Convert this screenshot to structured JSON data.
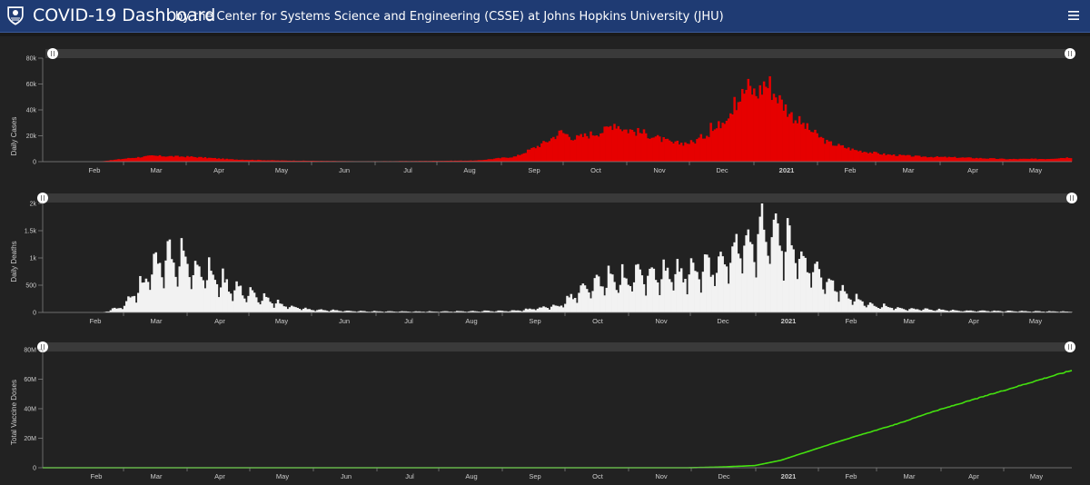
{
  "header": {
    "title": "COVID-19 Dashboard",
    "subtitle": "by the Center for Systems Science and Engineering (CSSE) at Johns Hopkins University (JHU)",
    "menu_icon": "hamburger-menu-icon",
    "background": "#1f3b73"
  },
  "x_axis_months": [
    "Feb",
    "Mar",
    "Apr",
    "May",
    "Jun",
    "Jul",
    "Aug",
    "Sep",
    "Oct",
    "Nov",
    "Dec",
    "2021",
    "Feb",
    "Mar",
    "Apr",
    "May"
  ],
  "chart_data": [
    {
      "type": "bar",
      "ylabel": "Daily Cases",
      "yticks": [
        "0",
        "20k",
        "40k",
        "60k",
        "80k"
      ],
      "ylim": [
        0,
        80000
      ],
      "color": "#e60000",
      "series": [
        {
          "keypoints_day_value": [
            [
              0,
              0
            ],
            [
              28,
              50
            ],
            [
              42,
              2500
            ],
            [
              55,
              4500
            ],
            [
              75,
              3800
            ],
            [
              95,
              1800
            ],
            [
              120,
              900
            ],
            [
              160,
              300
            ],
            [
              190,
              500
            ],
            [
              220,
              900
            ],
            [
              240,
              4000
            ],
            [
              255,
              15000
            ],
            [
              263,
              23000
            ],
            [
              270,
              18000
            ],
            [
              285,
              24000
            ],
            [
              290,
              30000
            ],
            [
              295,
              25000
            ],
            [
              305,
              22000
            ],
            [
              320,
              14000
            ],
            [
              330,
              15000
            ],
            [
              342,
              26000
            ],
            [
              352,
              46000
            ],
            [
              358,
              58000
            ],
            [
              362,
              52000
            ],
            [
              367,
              60000
            ],
            [
              373,
              50000
            ],
            [
              380,
              36000
            ],
            [
              388,
              26000
            ],
            [
              398,
              15000
            ],
            [
              412,
              9000
            ],
            [
              428,
              5500
            ],
            [
              445,
              4000
            ],
            [
              470,
              3000
            ],
            [
              490,
              2000
            ],
            [
              510,
              2200
            ],
            [
              520,
              3200
            ]
          ],
          "spikes_day_value": [
            [
              262,
              24000
            ],
            [
              366,
              62000
            ],
            [
              369,
              66000
            ],
            [
              351,
              50000
            ],
            [
              339,
              30000
            ],
            [
              298,
              25000
            ]
          ]
        }
      ],
      "total_days": 523,
      "grid": false
    },
    {
      "type": "bar",
      "ylabel": "Daily Deaths",
      "yticks": [
        "0",
        "500",
        "1k",
        "1.5k",
        "2k"
      ],
      "ylim": [
        0,
        2000
      ],
      "color": "#f2f2f2",
      "series": [
        {
          "keypoints_day_value": [
            [
              0,
              0
            ],
            [
              30,
              0
            ],
            [
              40,
              100
            ],
            [
              50,
              500
            ],
            [
              58,
              900
            ],
            [
              65,
              950
            ],
            [
              72,
              900
            ],
            [
              80,
              750
            ],
            [
              95,
              450
            ],
            [
              108,
              280
            ],
            [
              120,
              140
            ],
            [
              135,
              50
            ],
            [
              160,
              20
            ],
            [
              200,
              15
            ],
            [
              240,
              30
            ],
            [
              262,
              120
            ],
            [
              272,
              350
            ],
            [
              285,
              550
            ],
            [
              300,
              620
            ],
            [
              320,
              640
            ],
            [
              335,
              730
            ],
            [
              345,
              900
            ],
            [
              352,
              1100
            ],
            [
              360,
              1300
            ],
            [
              366,
              1500
            ],
            [
              372,
              1350
            ],
            [
              380,
              1100
            ],
            [
              388,
              850
            ],
            [
              398,
              550
            ],
            [
              408,
              300
            ],
            [
              420,
              130
            ],
            [
              440,
              60
            ],
            [
              470,
              30
            ],
            [
              500,
              20
            ],
            [
              523,
              15
            ]
          ],
          "weekly_pattern": [
            1.35,
            1.25,
            1.15,
            0.95,
            0.8,
            0.55,
            0.95
          ]
        }
      ],
      "total_days": 523,
      "grid": false
    },
    {
      "type": "line",
      "ylabel": "Total Vaccine Doses",
      "yticks": [
        "0",
        "20M",
        "40M",
        "60M",
        "80M"
      ],
      "ylim": [
        0,
        80000000
      ],
      "color": "#44e10f",
      "series": [
        {
          "points_day_value": [
            [
              0,
              0
            ],
            [
              328,
              0
            ],
            [
              345,
              500000
            ],
            [
              362,
              1500000
            ],
            [
              375,
              5000000
            ],
            [
              390,
              11500000
            ],
            [
              405,
              18000000
            ],
            [
              420,
              24000000
            ],
            [
              435,
              30000000
            ],
            [
              450,
              37000000
            ],
            [
              465,
              43000000
            ],
            [
              480,
              49000000
            ],
            [
              495,
              55000000
            ],
            [
              510,
              61000000
            ],
            [
              523,
              66000000
            ]
          ]
        }
      ],
      "total_days": 523,
      "grid": false
    }
  ],
  "range_handles": [
    "slider-handle-left",
    "slider-handle-right"
  ]
}
